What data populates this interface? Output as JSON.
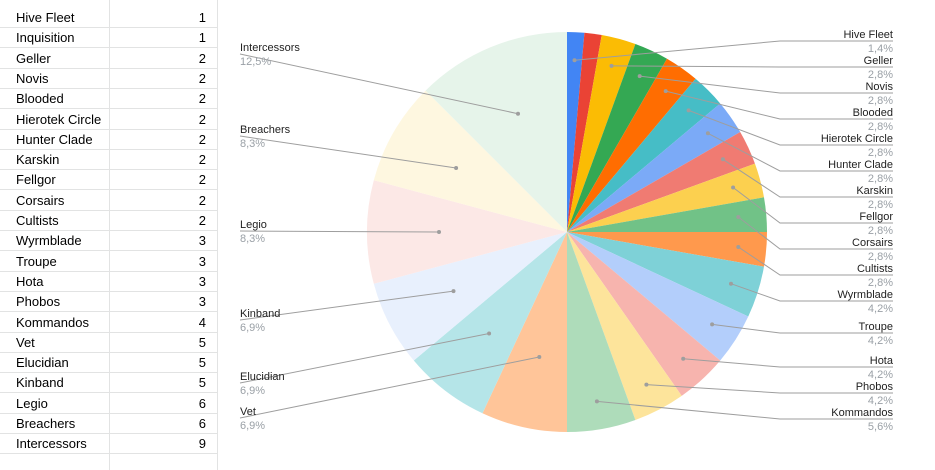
{
  "sheet": {
    "rows": [
      {
        "name": "Hive Fleet",
        "value": "1"
      },
      {
        "name": "Inquisition",
        "value": "1"
      },
      {
        "name": "Geller",
        "value": "2"
      },
      {
        "name": "Novis",
        "value": "2"
      },
      {
        "name": "Blooded",
        "value": "2"
      },
      {
        "name": "Hierotek Circle",
        "value": "2"
      },
      {
        "name": "Hunter Clade",
        "value": "2"
      },
      {
        "name": "Karskin",
        "value": "2"
      },
      {
        "name": "Fellgor",
        "value": "2"
      },
      {
        "name": "Corsairs",
        "value": "2"
      },
      {
        "name": "Cultists",
        "value": "2"
      },
      {
        "name": "Wyrmblade",
        "value": "3"
      },
      {
        "name": "Troupe",
        "value": "3"
      },
      {
        "name": "Hota",
        "value": "3"
      },
      {
        "name": "Phobos",
        "value": "3"
      },
      {
        "name": "Kommandos",
        "value": "4"
      },
      {
        "name": "Vet",
        "value": "5"
      },
      {
        "name": "Elucidian",
        "value": "5"
      },
      {
        "name": "Kinband",
        "value": "5"
      },
      {
        "name": "Legio",
        "value": "6"
      },
      {
        "name": "Breachers",
        "value": "6"
      },
      {
        "name": "Intercessors",
        "value": "9"
      }
    ]
  },
  "chart_data": {
    "type": "pie",
    "start": "top",
    "direction": "clockwise",
    "slices": [
      {
        "label": "Hive Fleet",
        "value": 1,
        "pct": "1,4%",
        "color": "#4285f4"
      },
      {
        "label": "Inquisition",
        "value": 1,
        "pct": "1,4%",
        "color": "#ea4335"
      },
      {
        "label": "Geller",
        "value": 2,
        "pct": "2,8%",
        "color": "#fbbc04"
      },
      {
        "label": "Novis",
        "value": 2,
        "pct": "2,8%",
        "color": "#34a853"
      },
      {
        "label": "Blooded",
        "value": 2,
        "pct": "2,8%",
        "color": "#ff6d01"
      },
      {
        "label": "Hierotek Circle",
        "value": 2,
        "pct": "2,8%",
        "color": "#46bdc6"
      },
      {
        "label": "Hunter Clade",
        "value": 2,
        "pct": "2,8%",
        "color": "#7baaf7"
      },
      {
        "label": "Karskin",
        "value": 2,
        "pct": "2,8%",
        "color": "#f07b72"
      },
      {
        "label": "Fellgor",
        "value": 2,
        "pct": "2,8%",
        "color": "#fcd04f"
      },
      {
        "label": "Corsairs",
        "value": 2,
        "pct": "2,8%",
        "color": "#71c287"
      },
      {
        "label": "Cultists",
        "value": 2,
        "pct": "2,8%",
        "color": "#ff994d"
      },
      {
        "label": "Wyrmblade",
        "value": 3,
        "pct": "4,2%",
        "color": "#7ed1d7"
      },
      {
        "label": "Troupe",
        "value": 3,
        "pct": "4,2%",
        "color": "#b3cefb"
      },
      {
        "label": "Hota",
        "value": 3,
        "pct": "4,2%",
        "color": "#f7b4ae"
      },
      {
        "label": "Phobos",
        "value": 3,
        "pct": "4,2%",
        "color": "#fde49b"
      },
      {
        "label": "Kommandos",
        "value": 4,
        "pct": "5,6%",
        "color": "#aedcba"
      },
      {
        "label": "Vet",
        "value": 5,
        "pct": "6,9%",
        "color": "#ffc599"
      },
      {
        "label": "Elucidian",
        "value": 5,
        "pct": "6,9%",
        "color": "#b5e5e8"
      },
      {
        "label": "Kinband",
        "value": 5,
        "pct": "6,9%",
        "color": "#e8f0fd"
      },
      {
        "label": "Legio",
        "value": 6,
        "pct": "8,3%",
        "color": "#fce8e6"
      },
      {
        "label": "Breachers",
        "value": 6,
        "pct": "8,3%",
        "color": "#fef7e0"
      },
      {
        "label": "Intercessors",
        "value": 9,
        "pct": "12,5%",
        "color": "#e6f4ea"
      }
    ],
    "labeled_right": [
      "Hive Fleet",
      "Geller",
      "Novis",
      "Blooded",
      "Hierotek Circle",
      "Hunter Clade",
      "Karskin",
      "Fellgor",
      "Corsairs",
      "Cultists",
      "Wyrmblade",
      "Troupe",
      "Hota",
      "Phobos",
      "Kommandos"
    ],
    "labeled_left": [
      "Intercessors",
      "Breachers",
      "Legio",
      "Kinband",
      "Elucidian",
      "Vet"
    ],
    "label_color": "#222222",
    "pct_color": "#9aa0a6",
    "leader_color": "#9e9e9e"
  }
}
